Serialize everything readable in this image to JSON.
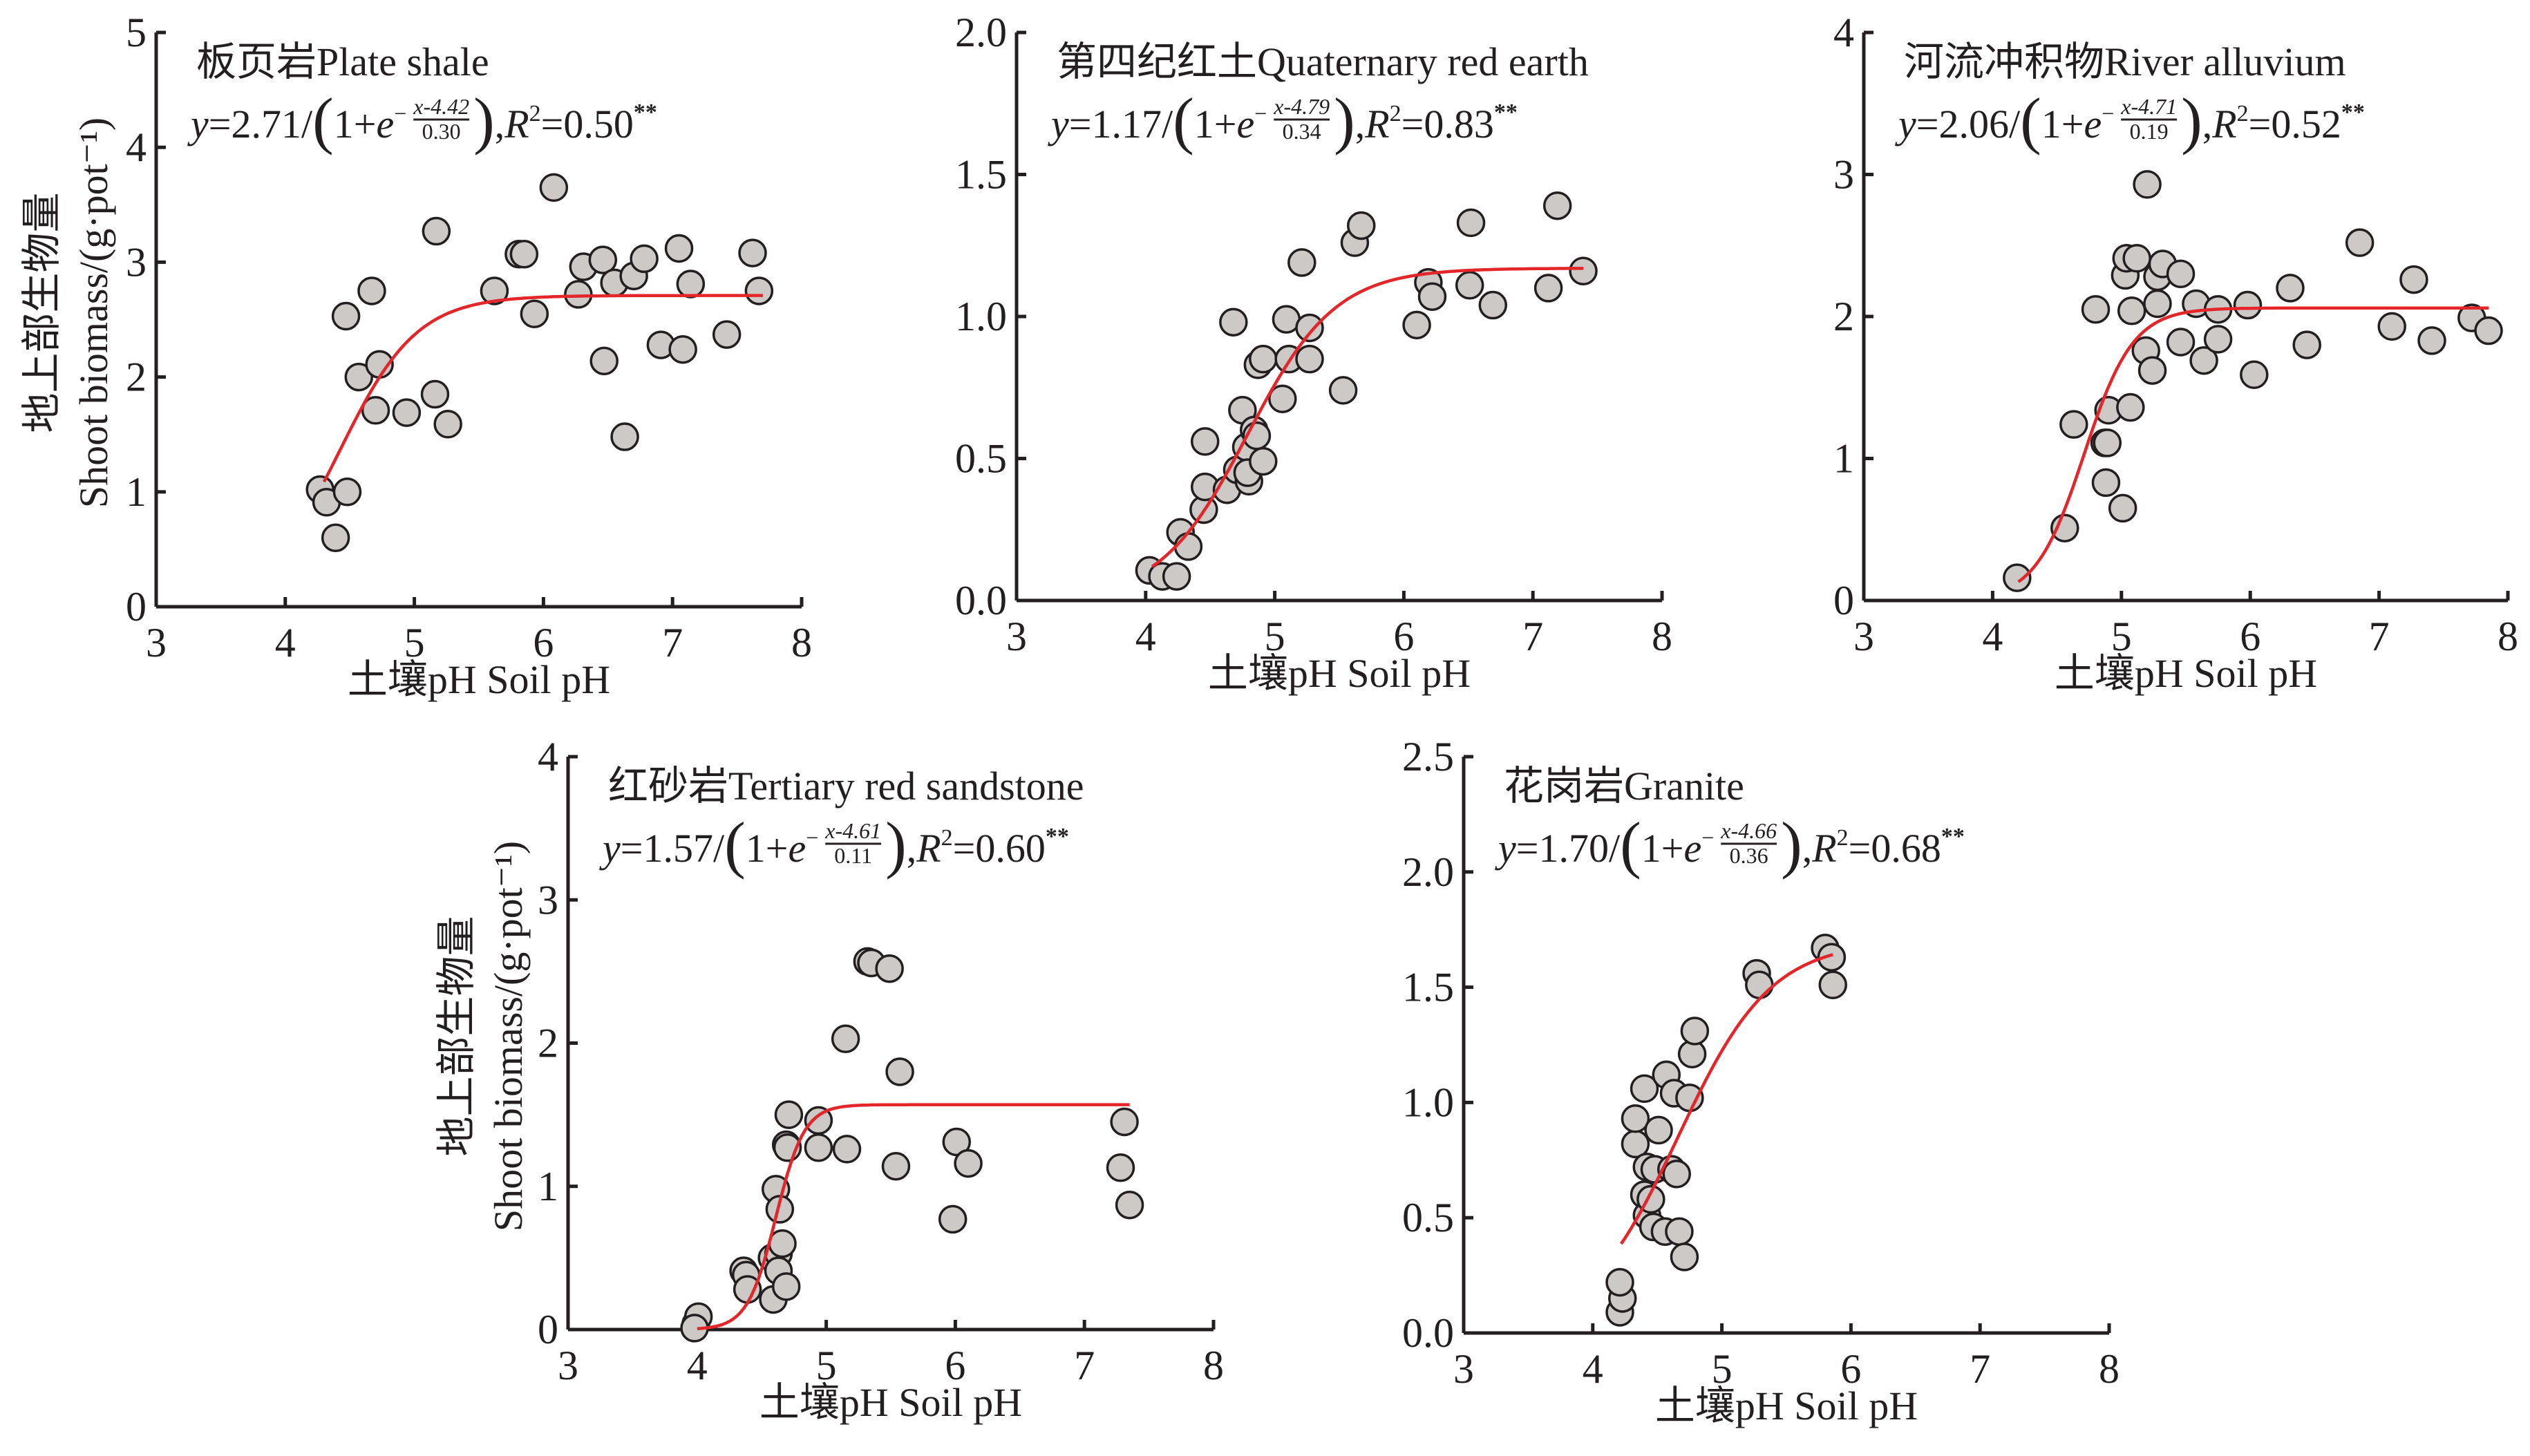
{
  "chart_data": [
    {
      "type": "scatter",
      "title": "板页岩Plate shale",
      "xlabel": "土壤pH Soil pH",
      "ylabel": [
        "地上部生物量",
        "Shoot biomass/(g·pot⁻¹)"
      ],
      "xlim": [
        3,
        8
      ],
      "ylim": [
        0,
        5
      ],
      "xticks": [
        "3",
        "4",
        "5",
        "6",
        "7",
        "8"
      ],
      "yticks": [
        "0",
        "1",
        "2",
        "3",
        "4",
        "5"
      ],
      "grid": false,
      "equation": {
        "lhs": "y",
        "coef": "=2.71/",
        "lparen": "(",
        "one_plus": "1+",
        "base": "e",
        "minus": "−",
        "num": "x-4.42",
        "den": "0.30",
        "rparen": ")",
        "comma": ",",
        "r_sym": "R",
        "r_sup": "2",
        "r_val": "=0.50",
        "sig": "**"
      },
      "fit": {
        "a": 2.71,
        "x0": 4.42,
        "b": 0.3,
        "x_range": [
          4.3,
          7.7
        ]
      },
      "points": [
        [
          4.27,
          1.02
        ],
        [
          4.32,
          0.91
        ],
        [
          4.39,
          0.6
        ],
        [
          4.48,
          1.0
        ],
        [
          4.47,
          2.53
        ],
        [
          4.57,
          2.0
        ],
        [
          4.67,
          2.75
        ],
        [
          4.7,
          1.71
        ],
        [
          4.73,
          2.11
        ],
        [
          4.94,
          1.69
        ],
        [
          5.16,
          1.85
        ],
        [
          5.17,
          3.27
        ],
        [
          5.26,
          1.59
        ],
        [
          5.62,
          2.75
        ],
        [
          5.81,
          3.07
        ],
        [
          5.85,
          3.07
        ],
        [
          5.93,
          2.55
        ],
        [
          6.08,
          3.65
        ],
        [
          6.27,
          2.72
        ],
        [
          6.31,
          2.96
        ],
        [
          6.46,
          3.02
        ],
        [
          6.47,
          2.14
        ],
        [
          6.55,
          2.82
        ],
        [
          6.63,
          1.48
        ],
        [
          6.7,
          2.88
        ],
        [
          6.78,
          3.03
        ],
        [
          6.91,
          2.28
        ],
        [
          7.05,
          3.12
        ],
        [
          7.08,
          2.24
        ],
        [
          7.14,
          2.81
        ],
        [
          7.42,
          2.37
        ],
        [
          7.62,
          3.08
        ],
        [
          7.67,
          2.75
        ]
      ]
    },
    {
      "type": "scatter",
      "title": "第四纪红土Quaternary red earth",
      "xlabel": "土壤pH Soil pH",
      "ylabel": [],
      "xlim": [
        3,
        8
      ],
      "ylim": [
        0,
        2.0
      ],
      "xticks": [
        "3",
        "4",
        "5",
        "6",
        "7",
        "8"
      ],
      "yticks": [
        "0.0",
        "0.5",
        "1.0",
        "1.5",
        "2.0"
      ],
      "grid": false,
      "equation": {
        "lhs": "y",
        "coef": "=1.17/",
        "lparen": "(",
        "one_plus": "1+",
        "base": "e",
        "minus": "−",
        "num": "x-4.79",
        "den": "0.34",
        "rparen": ")",
        "comma": ",",
        "r_sym": "R",
        "r_sup": "2",
        "r_val": "=0.83",
        "sig": "**"
      },
      "fit": {
        "a": 1.17,
        "x0": 4.79,
        "b": 0.34,
        "x_range": [
          4.05,
          7.39
        ]
      },
      "points": [
        [
          4.03,
          0.106
        ],
        [
          4.13,
          0.085
        ],
        [
          4.24,
          0.085
        ],
        [
          4.27,
          0.24
        ],
        [
          4.33,
          0.19
        ],
        [
          4.45,
          0.32
        ],
        [
          4.46,
          0.4
        ],
        [
          4.46,
          0.56
        ],
        [
          4.63,
          0.39
        ],
        [
          4.68,
          0.98
        ],
        [
          4.71,
          0.46
        ],
        [
          4.75,
          0.67
        ],
        [
          4.78,
          0.54
        ],
        [
          4.8,
          0.42
        ],
        [
          4.79,
          0.45
        ],
        [
          4.84,
          0.6
        ],
        [
          4.86,
          0.58
        ],
        [
          4.87,
          0.83
        ],
        [
          4.91,
          0.49
        ],
        [
          4.91,
          0.85
        ],
        [
          5.06,
          0.71
        ],
        [
          5.09,
          0.99
        ],
        [
          5.11,
          0.85
        ],
        [
          5.21,
          1.19
        ],
        [
          5.27,
          0.85
        ],
        [
          5.27,
          0.96
        ],
        [
          5.53,
          0.74
        ],
        [
          5.62,
          1.26
        ],
        [
          5.67,
          1.32
        ],
        [
          6.1,
          0.97
        ],
        [
          6.19,
          1.12
        ],
        [
          6.22,
          1.07
        ],
        [
          6.51,
          1.11
        ],
        [
          6.52,
          1.33
        ],
        [
          6.69,
          1.04
        ],
        [
          7.12,
          1.1
        ],
        [
          7.19,
          1.39
        ],
        [
          7.39,
          1.16
        ]
      ]
    },
    {
      "type": "scatter",
      "title": "河流冲积物River alluvium",
      "xlabel": "土壤pH Soil pH",
      "ylabel": [],
      "xlim": [
        3,
        8
      ],
      "ylim": [
        0,
        4
      ],
      "xticks": [
        "3",
        "4",
        "5",
        "6",
        "7",
        "8"
      ],
      "yticks": [
        "0",
        "1",
        "2",
        "3",
        "4"
      ],
      "grid": false,
      "equation": {
        "lhs": "y",
        "coef": "=2.06/",
        "lparen": "(",
        "one_plus": "1+",
        "base": "e",
        "minus": "−",
        "num": "x-4.71",
        "den": "0.19",
        "rparen": ")",
        "comma": ",",
        "r_sym": "R",
        "r_sup": "2",
        "r_val": "=0.52",
        "sig": "**"
      },
      "fit": {
        "a": 2.06,
        "x0": 4.71,
        "b": 0.19,
        "x_range": [
          4.2,
          7.85
        ]
      },
      "points": [
        [
          4.19,
          0.16
        ],
        [
          4.56,
          0.51
        ],
        [
          4.63,
          1.24
        ],
        [
          4.8,
          2.05
        ],
        [
          4.87,
          1.11
        ],
        [
          4.89,
          1.11
        ],
        [
          4.9,
          1.34
        ],
        [
          4.88,
          0.83
        ],
        [
          5.01,
          0.65
        ],
        [
          5.03,
          2.29
        ],
        [
          5.04,
          2.41
        ],
        [
          5.07,
          1.36
        ],
        [
          5.08,
          2.04
        ],
        [
          5.12,
          2.41
        ],
        [
          5.19,
          1.76
        ],
        [
          5.2,
          2.93
        ],
        [
          5.24,
          1.62
        ],
        [
          5.28,
          2.28
        ],
        [
          5.28,
          2.09
        ],
        [
          5.32,
          2.37
        ],
        [
          5.46,
          2.3
        ],
        [
          5.46,
          1.82
        ],
        [
          5.58,
          2.09
        ],
        [
          5.64,
          1.69
        ],
        [
          5.75,
          2.05
        ],
        [
          5.75,
          1.84
        ],
        [
          5.98,
          2.08
        ],
        [
          6.03,
          1.59
        ],
        [
          6.31,
          2.2
        ],
        [
          6.44,
          1.8
        ],
        [
          6.85,
          2.52
        ],
        [
          7.1,
          1.93
        ],
        [
          7.27,
          2.26
        ],
        [
          7.41,
          1.83
        ],
        [
          7.72,
          1.99
        ],
        [
          7.85,
          1.9
        ]
      ]
    },
    {
      "type": "scatter",
      "title": "红砂岩Tertiary red sandstone",
      "xlabel": "土壤pH Soil pH",
      "ylabel": [
        "地上部生物量",
        "Shoot biomass/(g·pot⁻¹)"
      ],
      "xlim": [
        3,
        8
      ],
      "ylim": [
        0,
        4
      ],
      "xticks": [
        "3",
        "4",
        "5",
        "6",
        "7",
        "8"
      ],
      "yticks": [
        "0",
        "1",
        "2",
        "3",
        "4"
      ],
      "grid": false,
      "equation": {
        "lhs": "y",
        "coef": "=1.57/",
        "lparen": "(",
        "one_plus": "1+",
        "base": "e",
        "minus": "−",
        "num": "x-4.61",
        "den": "0.11",
        "rparen": ")",
        "comma": ",",
        "r_sym": "R",
        "r_sup": "2",
        "r_val": "=0.60",
        "sig": "**"
      },
      "fit": {
        "a": 1.57,
        "x0": 4.61,
        "b": 0.11,
        "x_range": [
          4.0,
          7.35
        ]
      },
      "points": [
        [
          3.99,
          0.04
        ],
        [
          4.01,
          0.09
        ],
        [
          3.98,
          0.01
        ],
        [
          4.36,
          0.41
        ],
        [
          4.38,
          0.38
        ],
        [
          4.39,
          0.28
        ],
        [
          4.58,
          0.5
        ],
        [
          4.59,
          0.21
        ],
        [
          4.61,
          0.98
        ],
        [
          4.63,
          0.53
        ],
        [
          4.63,
          0.41
        ],
        [
          4.64,
          0.84
        ],
        [
          4.66,
          0.6
        ],
        [
          4.69,
          0.3
        ],
        [
          4.69,
          1.29
        ],
        [
          4.7,
          1.27
        ],
        [
          4.71,
          1.5
        ],
        [
          4.94,
          1.46
        ],
        [
          4.94,
          1.27
        ],
        [
          5.15,
          2.03
        ],
        [
          5.16,
          1.26
        ],
        [
          5.32,
          2.57
        ],
        [
          5.35,
          2.56
        ],
        [
          5.49,
          2.52
        ],
        [
          5.54,
          1.14
        ],
        [
          5.57,
          1.8
        ],
        [
          5.98,
          0.77
        ],
        [
          6.01,
          1.31
        ],
        [
          6.1,
          1.16
        ],
        [
          7.28,
          1.13
        ],
        [
          7.31,
          1.45
        ],
        [
          7.35,
          0.87
        ]
      ]
    },
    {
      "type": "scatter",
      "title": "花岗岩Granite",
      "xlabel": "土壤pH Soil pH",
      "ylabel": [],
      "xlim": [
        3,
        8
      ],
      "ylim": [
        0,
        2.5
      ],
      "xticks": [
        "3",
        "4",
        "5",
        "6",
        "7",
        "8"
      ],
      "yticks": [
        "0.0",
        "0.5",
        "1.0",
        "1.5",
        "2.0",
        "2.5"
      ],
      "grid": false,
      "equation": {
        "lhs": "y",
        "coef": "=1.70/",
        "lparen": "(",
        "one_plus": "1+",
        "base": "e",
        "minus": "−",
        "num": "x-4.66",
        "den": "0.36",
        "rparen": ")",
        "comma": ",",
        "r_sym": "R",
        "r_sup": "2",
        "r_val": "=0.68",
        "sig": "**"
      },
      "fit": {
        "a": 1.7,
        "x0": 4.66,
        "b": 0.36,
        "x_range": [
          4.22,
          5.86
        ]
      },
      "points": [
        [
          4.21,
          0.09
        ],
        [
          4.23,
          0.15
        ],
        [
          4.21,
          0.22
        ],
        [
          4.33,
          0.82
        ],
        [
          4.33,
          0.93
        ],
        [
          4.4,
          1.06
        ],
        [
          4.4,
          0.6
        ],
        [
          4.42,
          0.72
        ],
        [
          4.42,
          0.51
        ],
        [
          4.45,
          0.58
        ],
        [
          4.47,
          0.46
        ],
        [
          4.48,
          0.71
        ],
        [
          4.51,
          0.88
        ],
        [
          4.56,
          0.44
        ],
        [
          4.57,
          1.12
        ],
        [
          4.61,
          0.71
        ],
        [
          4.63,
          1.04
        ],
        [
          4.65,
          0.69
        ],
        [
          4.67,
          0.44
        ],
        [
          4.71,
          0.33
        ],
        [
          4.75,
          1.02
        ],
        [
          4.77,
          1.21
        ],
        [
          4.79,
          1.31
        ],
        [
          5.27,
          1.56
        ],
        [
          5.29,
          1.51
        ],
        [
          5.8,
          1.67
        ],
        [
          5.85,
          1.63
        ],
        [
          5.86,
          1.51
        ]
      ]
    }
  ],
  "colors": {
    "marker_fill": "#cdc9c7",
    "marker_stroke": "#231f20",
    "fit_line": "#e4262b",
    "axis": "#231f20"
  }
}
